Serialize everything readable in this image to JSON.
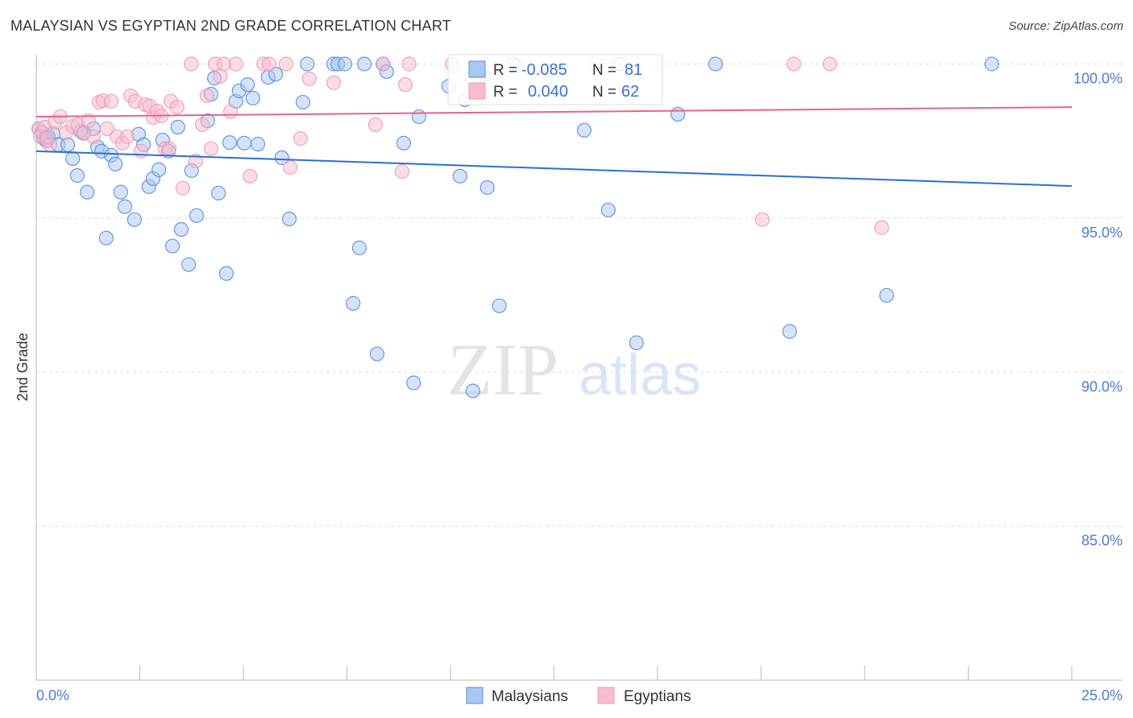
{
  "title": "MALAYSIAN VS EGYPTIAN 2ND GRADE CORRELATION CHART",
  "source": "Source: ZipAtlas.com",
  "watermark": "ZIPatlas",
  "colors": {
    "blue_fill": "#a9c7f0",
    "blue_stroke": "#5a8ee0",
    "blue_line": "#2a6fd6",
    "pink_fill": "#f7bccd",
    "pink_stroke": "#ef9ab5",
    "pink_line": "#e8628e",
    "label": "#4a7bd8"
  },
  "chart_data": {
    "type": "scatter",
    "title": "MALAYSIAN VS EGYPTIAN 2ND GRADE CORRELATION CHART",
    "xlabel": "",
    "ylabel": "2nd Grade",
    "xlim": [
      0,
      25
    ],
    "ylim": [
      80,
      100
    ],
    "x_tick_labels": [
      "0.0%",
      "25.0%"
    ],
    "y_ticks": [
      100,
      95,
      90,
      85
    ],
    "y_tick_labels": [
      "100.0%",
      "95.0%",
      "90.0%",
      "85.0%"
    ],
    "grid": true,
    "legend_placement": "bottom",
    "stats_box": [
      {
        "r_label": "R =",
        "r": "-0.085",
        "n_label": "N =",
        "n": "81"
      },
      {
        "r_label": "R =",
        "r": "0.040",
        "n_label": "N =",
        "n": "62"
      }
    ],
    "series": [
      {
        "name": "Malaysians",
        "trend": [
          [
            0,
            97.17
          ],
          [
            25,
            96.04
          ]
        ],
        "points": [
          [
            0.06,
            97.9
          ],
          [
            0.14,
            97.77
          ],
          [
            0.19,
            97.58
          ],
          [
            0.25,
            97.51
          ],
          [
            0.29,
            97.64
          ],
          [
            0.41,
            97.74
          ],
          [
            0.53,
            97.38
          ],
          [
            0.76,
            97.38
          ],
          [
            0.88,
            96.93
          ],
          [
            0.99,
            96.38
          ],
          [
            1.07,
            97.82
          ],
          [
            1.15,
            97.77
          ],
          [
            1.23,
            95.84
          ],
          [
            1.38,
            97.9
          ],
          [
            1.48,
            97.3
          ],
          [
            1.58,
            97.17
          ],
          [
            1.69,
            94.35
          ],
          [
            1.81,
            97.04
          ],
          [
            1.91,
            96.75
          ],
          [
            2.04,
            95.84
          ],
          [
            2.14,
            95.37
          ],
          [
            2.37,
            94.95
          ],
          [
            2.47,
            97.72
          ],
          [
            2.59,
            97.38
          ],
          [
            2.72,
            96.02
          ],
          [
            2.82,
            96.28
          ],
          [
            2.96,
            96.57
          ],
          [
            3.05,
            97.53
          ],
          [
            3.19,
            97.17
          ],
          [
            3.29,
            94.09
          ],
          [
            3.42,
            97.95
          ],
          [
            3.5,
            94.63
          ],
          [
            3.68,
            93.49
          ],
          [
            3.75,
            96.54
          ],
          [
            3.87,
            95.08
          ],
          [
            4.14,
            98.16
          ],
          [
            4.22,
            99.02
          ],
          [
            4.3,
            99.54
          ],
          [
            4.4,
            95.81
          ],
          [
            4.59,
            93.2
          ],
          [
            4.67,
            97.45
          ],
          [
            4.82,
            98.79
          ],
          [
            4.9,
            99.13
          ],
          [
            5.02,
            97.43
          ],
          [
            5.1,
            99.33
          ],
          [
            5.23,
            98.89
          ],
          [
            5.35,
            97.4
          ],
          [
            5.6,
            99.57
          ],
          [
            5.78,
            99.67
          ],
          [
            5.93,
            96.96
          ],
          [
            6.11,
            94.97
          ],
          [
            6.44,
            98.76
          ],
          [
            6.54,
            100
          ],
          [
            7.18,
            100
          ],
          [
            7.28,
            100
          ],
          [
            7.45,
            100
          ],
          [
            7.65,
            92.23
          ],
          [
            7.8,
            94.03
          ],
          [
            7.92,
            100
          ],
          [
            8.23,
            90.59
          ],
          [
            8.37,
            100
          ],
          [
            8.46,
            99.75
          ],
          [
            8.87,
            97.43
          ],
          [
            9.11,
            89.65
          ],
          [
            9.24,
            98.29
          ],
          [
            9.96,
            99.28
          ],
          [
            10.23,
            96.36
          ],
          [
            10.35,
            98.84
          ],
          [
            10.54,
            89.39
          ],
          [
            10.8,
            99.6
          ],
          [
            10.89,
            95.99
          ],
          [
            11.18,
            92.15
          ],
          [
            11.52,
            100
          ],
          [
            13.23,
            97.85
          ],
          [
            13.81,
            95.26
          ],
          [
            14.09,
            100
          ],
          [
            14.49,
            90.95
          ],
          [
            15.49,
            98.37
          ],
          [
            16.4,
            100
          ],
          [
            18.19,
            91.32
          ],
          [
            20.53,
            92.49
          ],
          [
            23.07,
            100
          ]
        ]
      },
      {
        "name": "Egyptians",
        "trend": [
          [
            0,
            98.29
          ],
          [
            25,
            98.6
          ]
        ],
        "points": [
          [
            0.06,
            97.9
          ],
          [
            0.1,
            97.64
          ],
          [
            0.21,
            97.95
          ],
          [
            0.25,
            97.59
          ],
          [
            0.33,
            97.38
          ],
          [
            0.45,
            98.11
          ],
          [
            0.58,
            98.29
          ],
          [
            0.72,
            97.77
          ],
          [
            0.88,
            97.98
          ],
          [
            1.01,
            98.03
          ],
          [
            1.13,
            97.74
          ],
          [
            1.26,
            98.16
          ],
          [
            1.38,
            97.64
          ],
          [
            1.52,
            98.76
          ],
          [
            1.61,
            98.81
          ],
          [
            1.71,
            97.9
          ],
          [
            1.81,
            98.79
          ],
          [
            1.95,
            97.64
          ],
          [
            2.08,
            97.43
          ],
          [
            2.2,
            97.64
          ],
          [
            2.28,
            98.97
          ],
          [
            2.39,
            98.79
          ],
          [
            2.53,
            97.17
          ],
          [
            2.63,
            98.68
          ],
          [
            2.74,
            98.63
          ],
          [
            2.82,
            98.26
          ],
          [
            2.92,
            98.47
          ],
          [
            3.02,
            98.32
          ],
          [
            3.11,
            97.25
          ],
          [
            3.25,
            98.79
          ],
          [
            3.4,
            98.6
          ],
          [
            3.54,
            95.97
          ],
          [
            3.74,
            100
          ],
          [
            3.85,
            96.85
          ],
          [
            4.01,
            98.03
          ],
          [
            4.12,
            98.97
          ],
          [
            4.22,
            97.25
          ],
          [
            4.32,
            100
          ],
          [
            4.44,
            99.6
          ],
          [
            4.53,
            100
          ],
          [
            4.69,
            98.45
          ],
          [
            4.82,
            100
          ],
          [
            5.16,
            96.36
          ],
          [
            5.49,
            100
          ],
          [
            5.62,
            100
          ],
          [
            6.03,
            100
          ],
          [
            6.13,
            96.64
          ],
          [
            6.38,
            97.58
          ],
          [
            6.59,
            99.52
          ],
          [
            7.18,
            99.39
          ],
          [
            8.19,
            98.03
          ],
          [
            8.38,
            100
          ],
          [
            8.83,
            96.51
          ],
          [
            8.91,
            99.33
          ],
          [
            9.0,
            100
          ],
          [
            10.04,
            100
          ],
          [
            13.52,
            100
          ],
          [
            17.53,
            94.95
          ],
          [
            18.29,
            100
          ],
          [
            19.16,
            100
          ],
          [
            20.41,
            94.69
          ],
          [
            3.21,
            97.25
          ]
        ]
      }
    ]
  }
}
